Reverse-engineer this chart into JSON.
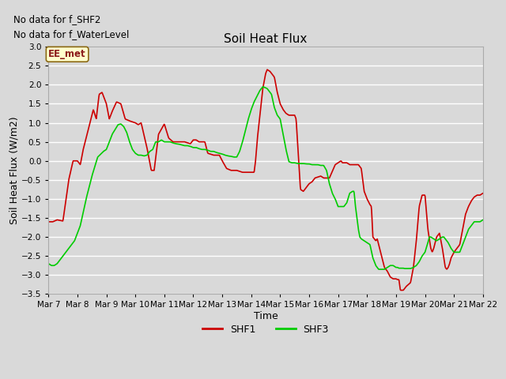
{
  "title": "Soil Heat Flux",
  "xlabel": "Time",
  "ylabel": "Soil Heat Flux (W/m2)",
  "ylim": [
    -3.5,
    3.0
  ],
  "xtick_labels": [
    "Mar 7",
    "Mar 8",
    "Mar 9",
    "Mar 10",
    "Mar 11",
    "Mar 12",
    "Mar 13",
    "Mar 14",
    "Mar 15",
    "Mar 16",
    "Mar 17",
    "Mar 18",
    "Mar 19",
    "Mar 20",
    "Mar 21",
    "Mar 22"
  ],
  "top_left_text1": "No data for f_SHF2",
  "top_left_text2": "No data for f_WaterLevel",
  "box_label": "EE_met",
  "box_facecolor": "#ffffcc",
  "box_edgecolor": "#8b6914",
  "shf1_color": "#cc0000",
  "shf3_color": "#00cc00",
  "bg_color": "#d9d9d9",
  "plot_bg_color": "#d9d9d9",
  "grid_color": "#ffffff"
}
